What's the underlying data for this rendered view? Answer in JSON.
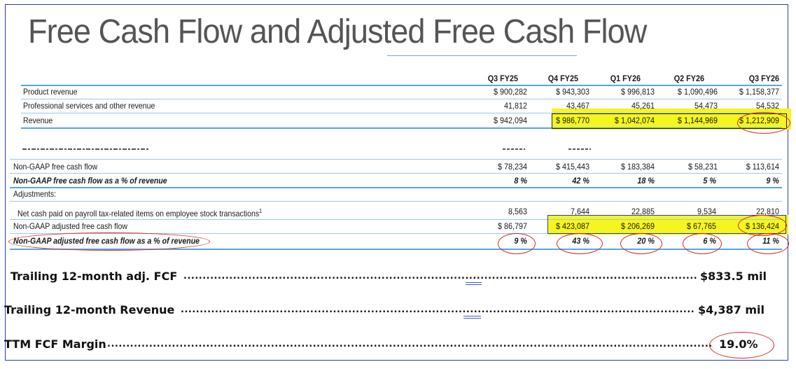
{
  "title": "Free Cash Flow and Adjusted Free Cash Flow",
  "periods": [
    "Q3 FY25",
    "Q4 FY25",
    "Q1 FY26",
    "Q2 FY26",
    "Q3 FY26"
  ],
  "rows": {
    "product_revenue": {
      "label": "Product revenue",
      "values": [
        "$ 900,282",
        "$ 943,303",
        "$ 996,813",
        "$ 1,090,496",
        "$ 1,158,377"
      ]
    },
    "prof_services": {
      "label": "Professional services and other revenue",
      "values": [
        "41,812",
        "43,467",
        "45,261",
        "54,473",
        "54,532"
      ]
    },
    "revenue": {
      "label": "Revenue",
      "values": [
        "$ 942,094",
        "$ 986,770",
        "$ 1,042,074",
        "$ 1,144,969",
        "$ 1,212,909"
      ]
    },
    "fcf": {
      "label": "Non-GAAP free cash flow",
      "values": [
        "$ 78,234",
        "$ 415,443",
        "$ 183,384",
        "$ 58,231",
        "$ 113,614"
      ]
    },
    "fcf_pct": {
      "label": "Non-GAAP free cash flow as a % of revenue",
      "values": [
        "8 %",
        "42 %",
        "18 %",
        "5 %",
        "9 %"
      ]
    },
    "adjustments": {
      "label": "Adjustments:"
    },
    "payroll_tax": {
      "label": "Net cash paid on payroll tax-related items on employee stock transactions",
      "footnote": "1",
      "values": [
        "8,563",
        "7,644",
        "22,885",
        "9,534",
        "22,810"
      ]
    },
    "adj_fcf": {
      "label": "Non-GAAP adjusted free cash flow",
      "values": [
        "$ 86,797",
        "$ 423,087",
        "$ 206,269",
        "$ 67,765",
        "$ 136,424"
      ]
    },
    "adj_fcf_pct": {
      "label": "Non-GAAP adjusted free cash flow as a % of revenue",
      "values": [
        "9 %",
        "43 %",
        "20 %",
        "6 %",
        "11 %"
      ]
    }
  },
  "summary": {
    "ttm_fcf_label": "Trailing 12-month adj. FCF",
    "ttm_fcf_value": "$833.5 mil",
    "ttm_revenue_label": "Trailing 12-month Revenue",
    "ttm_revenue_value": "$4,387 mil",
    "ttm_margin_label": "TTM FCF Margin",
    "ttm_margin_value": "19.0%"
  },
  "colors": {
    "highlight": "#f5f520",
    "annotation": "#d42a2a",
    "rule": "#5aa6d6",
    "frame": "#2a3fa8"
  }
}
